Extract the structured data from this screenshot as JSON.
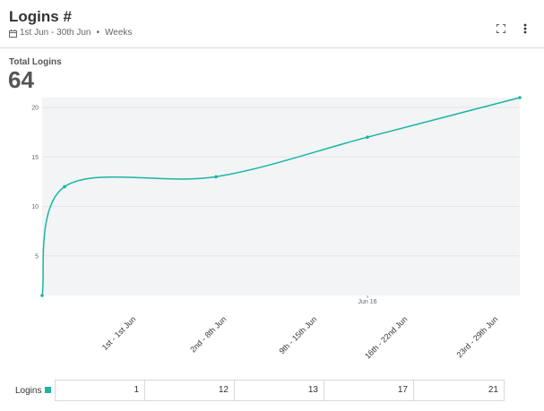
{
  "header": {
    "title": "Logins #",
    "date_range": "1st Jun - 30th Jun",
    "separator": "•",
    "granularity": "Weeks",
    "icons": [
      "calendar-icon",
      "expand-icon",
      "more-vertical-icon"
    ]
  },
  "kpi": {
    "label": "Total Logins",
    "value": "64"
  },
  "chart_data": {
    "type": "line",
    "x_tick_labels": [
      "1st - 1st Jun",
      "2nd - 8th Jun",
      "9th - 15th Jun",
      "16th - 22nd Jun",
      "23rd - 29th Jun"
    ],
    "x_axis_marker": "Jun 16",
    "y_ticks": [
      5,
      10,
      15,
      20
    ],
    "ylim": [
      1,
      21
    ],
    "grid": true,
    "series": [
      {
        "name": "Logins",
        "color": "#1ab5a6",
        "values": [
          1,
          12,
          13,
          17,
          21
        ]
      }
    ]
  },
  "table": {
    "row_label": "Logins",
    "swatch_color": "#1ab5a6",
    "cells": [
      "1",
      "12",
      "13",
      "17",
      "21"
    ]
  }
}
